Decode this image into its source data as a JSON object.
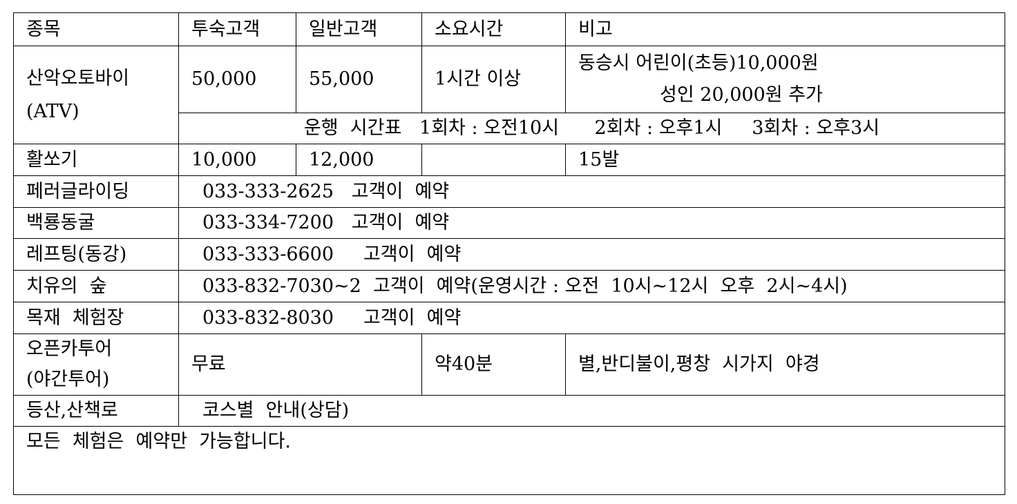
{
  "header": [
    "종목",
    "투숙고객",
    "일반고객",
    "소요시간",
    "비고"
  ],
  "atv": {
    "name_line1": "산악오토바이",
    "name_line2": "(ATV)",
    "guest_price": "50,000",
    "general_price": "55,000",
    "duration": "1시간 이상",
    "note_line1": "동승시 어린이(초등)10,000원",
    "note_line2": "성인 20,000원 추가",
    "schedule": "운행  시간표   1회차 : 오전10시      2회차 : 오후1시     3회차 : 오후3시"
  },
  "archery": {
    "name": "활쏘기",
    "guest_price": "10,000",
    "general_price": "12,000",
    "duration": "",
    "note": "15발"
  },
  "contacts": [
    {
      "name": "페러글라이딩",
      "info": "033-333-2625   고객이  예약"
    },
    {
      "name": "백룡동굴",
      "info": "033-334-7200   고객이  예약"
    },
    {
      "name": "레프팅(동강)",
      "info": "033-333-6600     고객이  예약"
    },
    {
      "name": "치유의  숲",
      "info": "033-832-7030~2  고객이  예약(운영시간 : 오전  10시~12시  오후  2시~4시)"
    },
    {
      "name": "목재  체험장",
      "info": "033-832-8030     고객이  예약"
    }
  ],
  "opencar": {
    "name_line1": "오픈카투어",
    "name_line2": "(야간투어)",
    "price": "무료",
    "duration": "약40분",
    "note": "별,반디불이,평창  시가지  야경"
  },
  "hiking": {
    "name": "등산,산책로",
    "info": "코스별  안내(상담)"
  },
  "footer_note": "모든  체험은  예약만  가능합니다."
}
